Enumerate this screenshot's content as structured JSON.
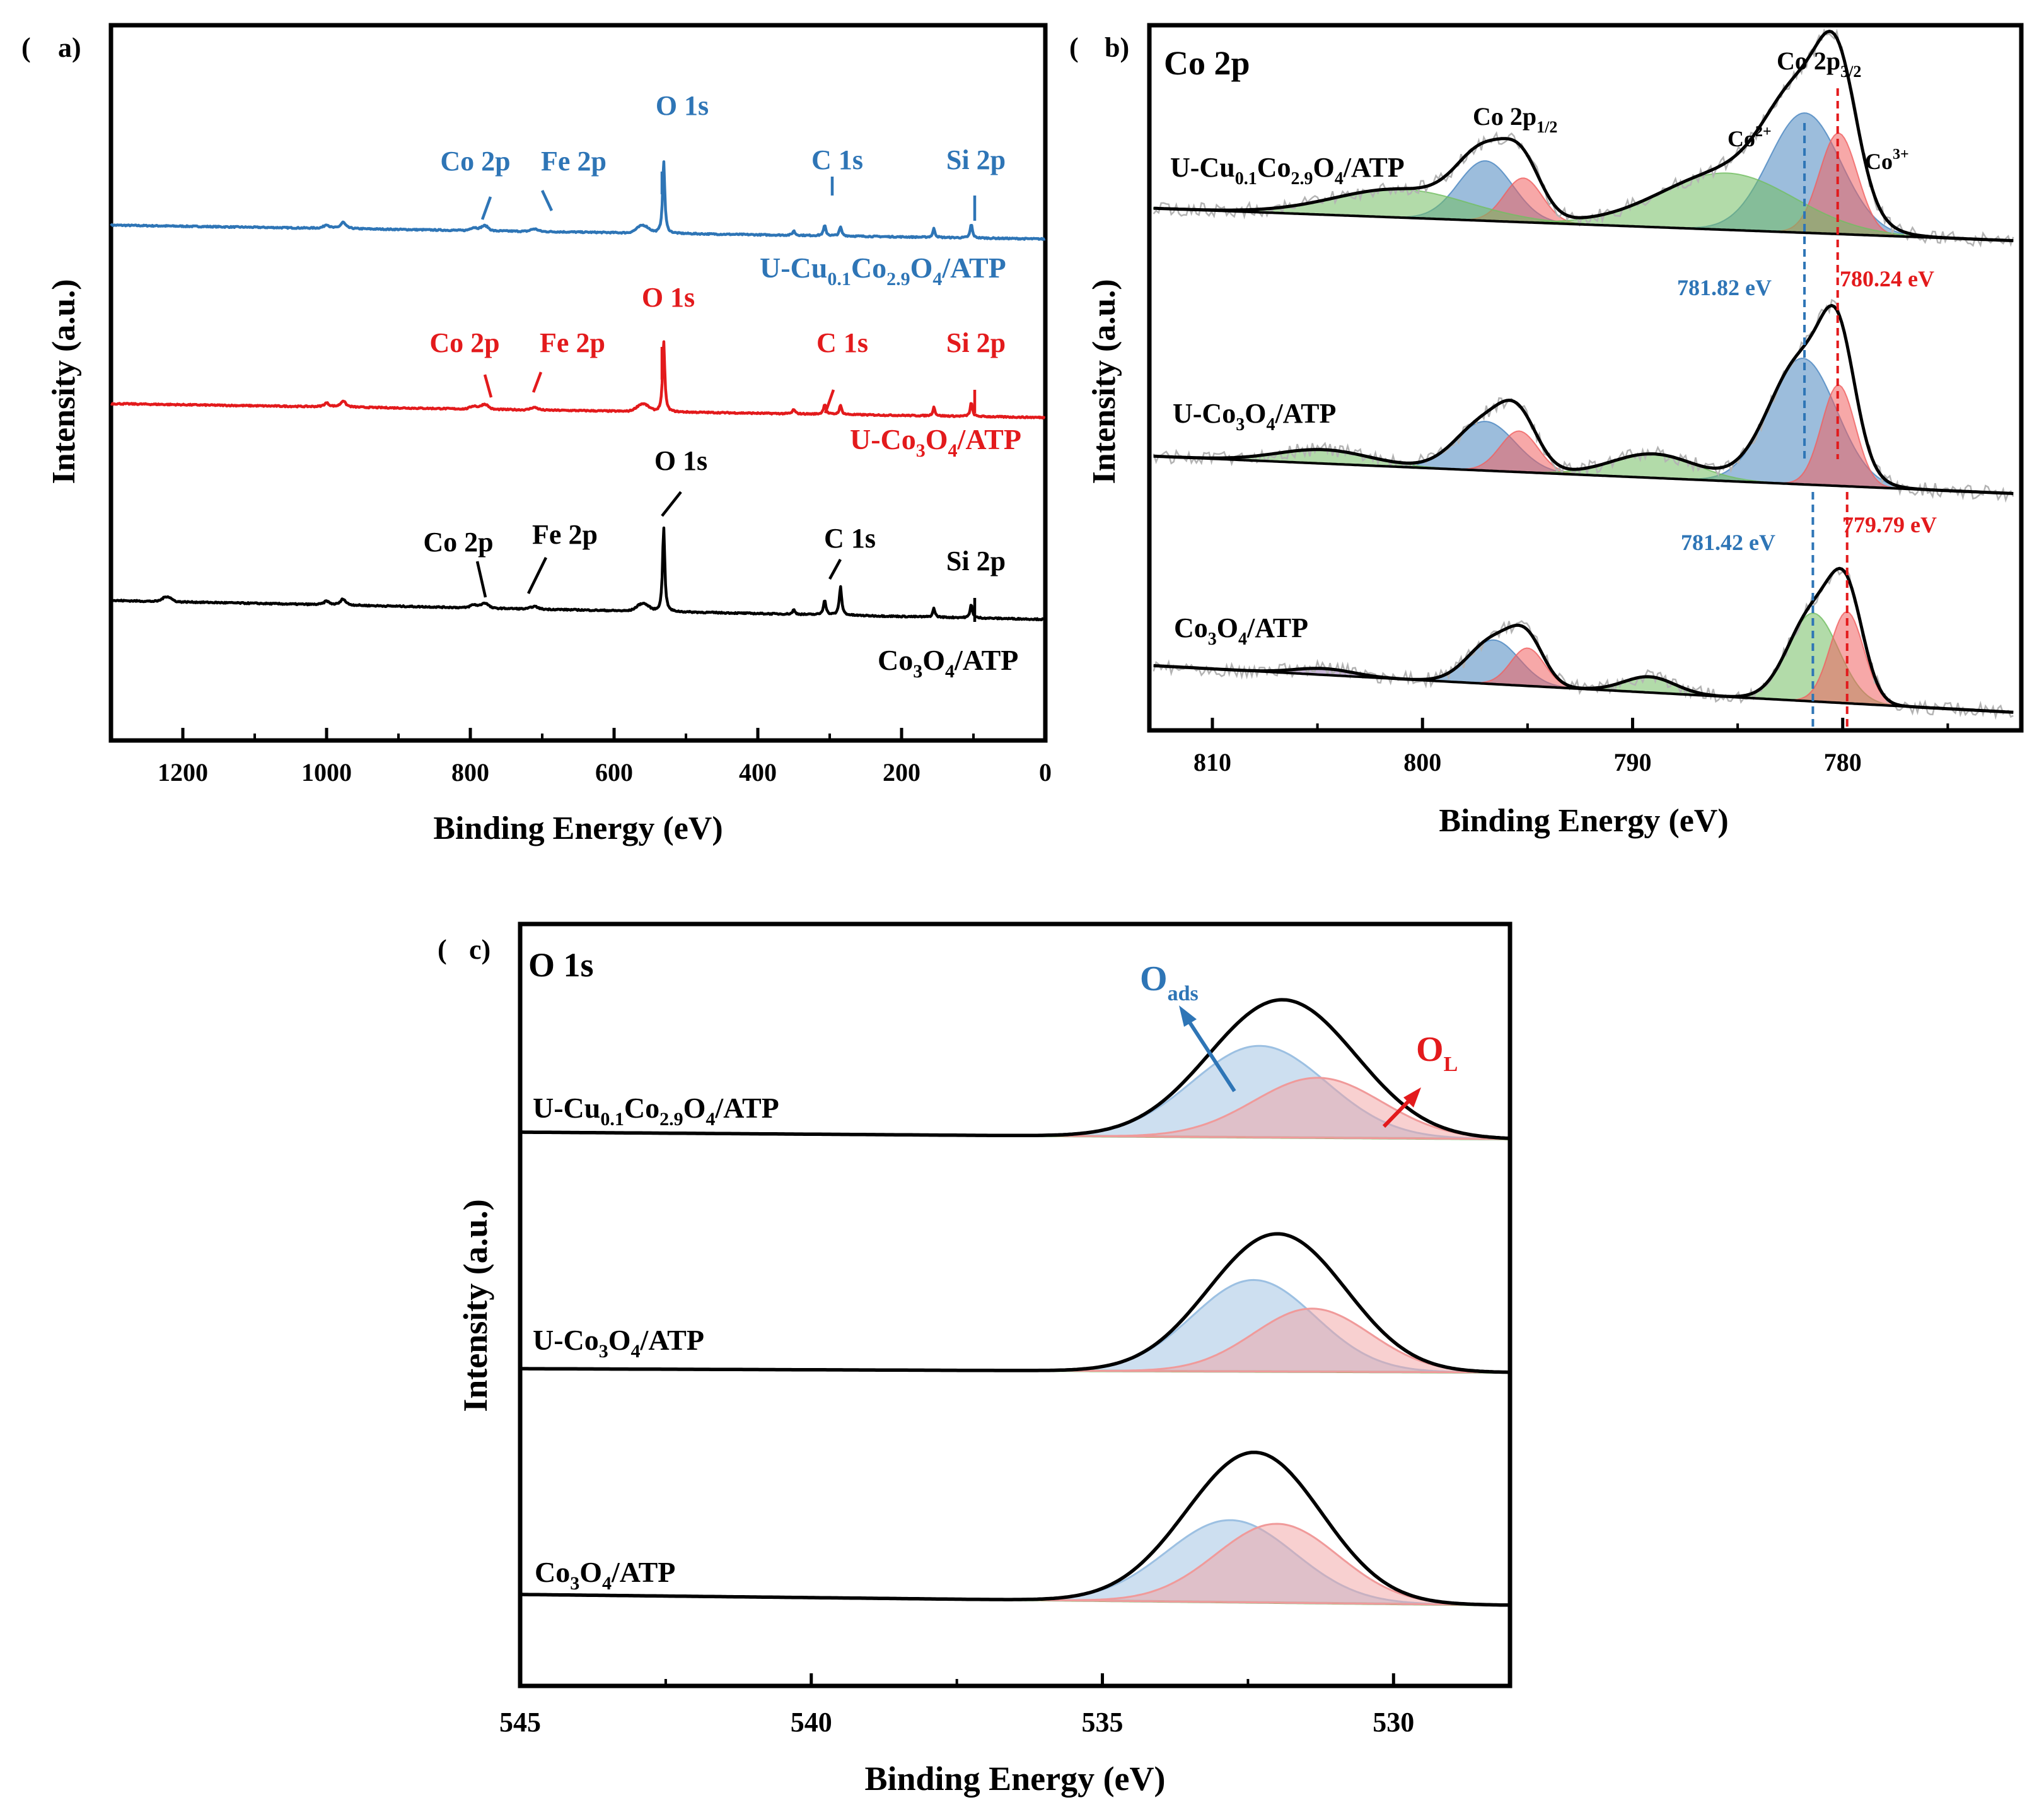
{
  "colors": {
    "blue": "#2e75b6",
    "red": "#e31a1c",
    "black": "#000000",
    "fill_blue": "#4a86c0",
    "fill_red": "#f06060",
    "fill_green": "#72be62",
    "fill_purple": "#9a7ab8",
    "raw_gray": "#b3b3b3"
  },
  "panels": {
    "a": {
      "label_open": "(",
      "label": "a)",
      "xlabel": "Binding Energy (eV)",
      "ylabel": "Intensity (a.u.)"
    },
    "b": {
      "label_open": "(",
      "label": "b)",
      "title": "Co 2p",
      "xlabel": "Binding Energy (eV)",
      "ylabel": "Intensity (a.u.)",
      "ann_co2p12": "Co 2p",
      "ann_co2p12_sub": "1/2",
      "ann_co2p32": "Co 2p",
      "ann_co2p32_sub": "3/2",
      "ann_co2plus": "Co",
      "ann_co2plus_sup": "2+",
      "ann_co3plus": "Co",
      "ann_co3plus_sup": "3+",
      "ann_e1_blue": "781.82 eV",
      "ann_e1_red": "780.24 eV",
      "ann_e2_blue": "781.42 eV",
      "ann_e2_red": "779.79 eV"
    },
    "c": {
      "label_open": "(",
      "label": "c)",
      "title": "O 1s",
      "xlabel": "Binding Energy (eV)",
      "ylabel": "Intensity (a.u.)",
      "ann_oads": "O",
      "ann_oads_sub": "ads",
      "ann_ol": "O",
      "ann_ol_sub": "L"
    }
  },
  "samples": {
    "s1": {
      "p1": "U-Cu",
      "s1": "0.1",
      "p2": "Co",
      "s2": "2.9",
      "p3": "O",
      "s3": "4",
      "p4": "/ATP"
    },
    "s2": {
      "p1": "U-Co",
      "s1": "3",
      "p2": "O",
      "s2": "4",
      "p3": "/ATP"
    },
    "s3": {
      "p1": "Co",
      "s1": "3",
      "p2": "O",
      "s2": "4",
      "p3": "/ATP"
    }
  },
  "chart_data": [
    {
      "panel": "a",
      "type": "line",
      "title": "",
      "xlabel": "Binding Energy (eV)",
      "ylabel": "Intensity (a.u.)",
      "xlim": [
        1300,
        0
      ],
      "x_ticks": [
        1200,
        1000,
        800,
        600,
        400,
        200,
        0
      ],
      "series": [
        {
          "name": "U-Cu0.1Co2.9O4/ATP",
          "color": "#2e75b6",
          "peaks": {
            "Co 2p": 780,
            "Fe 2p": 711,
            "O 1s": 531,
            "C 1s": 285,
            "Si 2p": 103
          },
          "peak_labels": [
            "Co 2p",
            "Fe 2p",
            "O 1s",
            "C 1s",
            "Si 2p"
          ]
        },
        {
          "name": "U-Co3O4/ATP",
          "color": "#e31a1c",
          "peaks": {
            "Co 2p": 780,
            "Fe 2p": 711,
            "O 1s": 531,
            "C 1s": 285,
            "Si 2p": 103
          },
          "peak_labels": [
            "Co 2p",
            "Fe 2p",
            "O 1s",
            "C 1s",
            "Si 2p"
          ]
        },
        {
          "name": "Co3O4/ATP",
          "color": "#000000",
          "peaks": {
            "Co 2p": 780,
            "Fe 2p": 711,
            "O 1s": 531,
            "C 1s": 285,
            "Si 2p": 103
          },
          "peak_labels": [
            "Co 2p",
            "Fe 2p",
            "O 1s",
            "C 1s",
            "Si 2p"
          ]
        }
      ]
    },
    {
      "panel": "b",
      "type": "line",
      "title": "Co 2p",
      "xlabel": "Binding Energy (eV)",
      "ylabel": "Intensity (a.u.)",
      "xlim": [
        813,
        771.5
      ],
      "x_ticks": [
        810,
        800,
        790,
        780
      ],
      "series": [
        {
          "name": "U-Cu0.1Co2.9O4/ATP",
          "co3_peak_eV": 780.24,
          "co2_peak_eV": 781.82
        },
        {
          "name": "U-Co3O4/ATP",
          "co3_peak_eV": 780.24,
          "co2_peak_eV": 781.82
        },
        {
          "name": "Co3O4/ATP",
          "co3_peak_eV": 779.79,
          "co2_peak_eV": 781.42
        }
      ],
      "annotations": [
        "Co 2p1/2",
        "Co 2p3/2",
        "Co2+",
        "Co3+",
        "781.82 eV",
        "780.24 eV",
        "781.42 eV",
        "779.79 eV"
      ]
    },
    {
      "panel": "c",
      "type": "line",
      "title": "O 1s",
      "xlabel": "Binding Energy (eV)",
      "ylabel": "Intensity (a.u.)",
      "xlim": [
        545,
        528
      ],
      "x_ticks": [
        545,
        540,
        535,
        530
      ],
      "series": [
        {
          "name": "U-Cu0.1Co2.9O4/ATP",
          "O_ads_eV": 532.3,
          "O_L_eV": 531.3
        },
        {
          "name": "U-Co3O4/ATP",
          "O_ads_eV": 532.4,
          "O_L_eV": 531.4
        },
        {
          "name": "Co3O4/ATP",
          "O_ads_eV": 532.8,
          "O_L_eV": 532.0
        }
      ],
      "annotations": [
        "Oads",
        "OL"
      ]
    }
  ]
}
